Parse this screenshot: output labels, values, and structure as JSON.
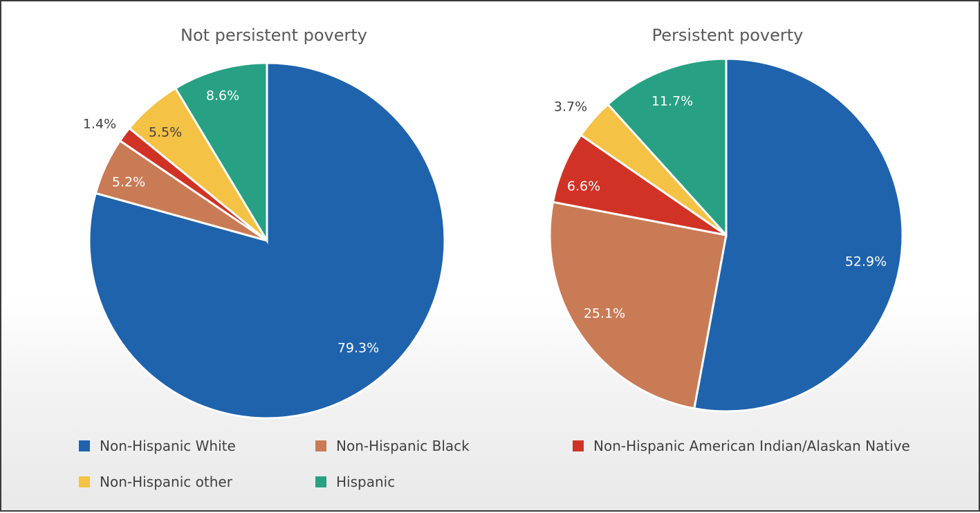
{
  "chart_data": [
    {
      "type": "pie",
      "title": "Not persistent poverty",
      "slices": [
        {
          "label": "Non-Hispanic White",
          "value": 79.3,
          "text": "79.3%"
        },
        {
          "label": "Non-Hispanic Black",
          "value": 5.2,
          "text": "5.2%"
        },
        {
          "label": "Non-Hispanic American Indian/Alaskan Native",
          "value": 1.4,
          "text": "1.4%"
        },
        {
          "label": "Non-Hispanic other",
          "value": 5.5,
          "text": "5.5%"
        },
        {
          "label": "Hispanic",
          "value": 8.6,
          "text": "8.6%"
        }
      ]
    },
    {
      "type": "pie",
      "title": "Persistent poverty",
      "slices": [
        {
          "label": "Non-Hispanic White",
          "value": 52.9,
          "text": "52.9%"
        },
        {
          "label": "Non-Hispanic Black",
          "value": 25.1,
          "text": "25.1%"
        },
        {
          "label": "Non-Hispanic American Indian/Alaskan Native",
          "value": 6.6,
          "text": "6.6%"
        },
        {
          "label": "Non-Hispanic other",
          "value": 3.7,
          "text": "3.7%"
        },
        {
          "label": "Hispanic",
          "value": 11.7,
          "text": "11.7%"
        }
      ]
    }
  ],
  "legend": {
    "placement": "bottom",
    "items": [
      {
        "label": "Non-Hispanic White",
        "color": "#1f63ad"
      },
      {
        "label": "Non-Hispanic Black",
        "color": "#c97b55"
      },
      {
        "label": "Non-Hispanic American Indian/Alaskan Native",
        "color": "#d03325"
      },
      {
        "label": "Non-Hispanic other",
        "color": "#f4c244"
      },
      {
        "label": "Hispanic",
        "color": "#27a084"
      }
    ]
  },
  "label_colors": {
    "on_dark": "#ffffff",
    "on_yellow": "#404040",
    "outside": "#404040"
  }
}
